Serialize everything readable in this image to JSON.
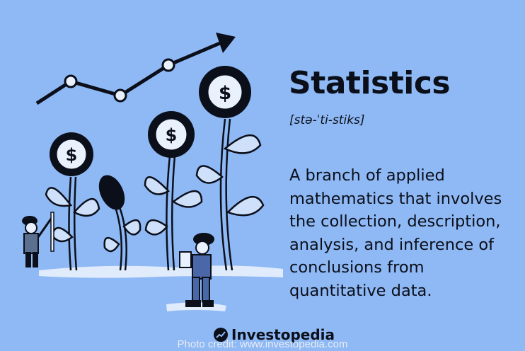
{
  "term": "Statistics",
  "pronunciation": "[stə-ˈti-stiks]",
  "definition": "A branch of applied mathematics that involves the collection, description, analysis, and inference of conclusions from quantitative data.",
  "brand": "Investopedia",
  "credit": "Photo credit: www.investopedia.com",
  "colors": {
    "background": "#8fb9f5",
    "ink": "#0b0f1a"
  },
  "icons": [
    "trend-arrow-icon",
    "dollar-flower-icon",
    "investopedia-logo-icon"
  ]
}
